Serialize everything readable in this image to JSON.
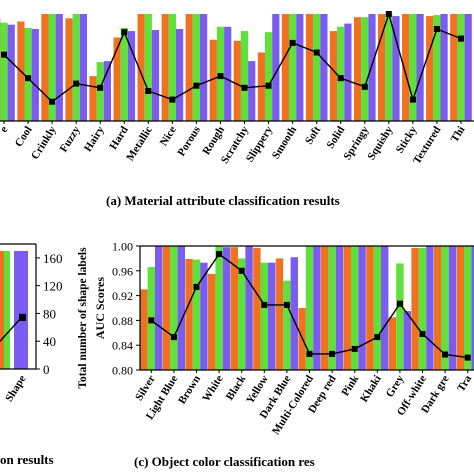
{
  "captions": {
    "a": "(a) Material attribute classification results",
    "b": "on results",
    "c": "(c) Object color classification res"
  },
  "colors": {
    "orange": "#f0711f",
    "green": "#5fe03a",
    "purple": "#7a5cf0",
    "line": "#000000"
  },
  "chart_data": [
    {
      "id": "material",
      "type": "bar",
      "categories": [
        "e",
        "Cool",
        "Crinkly",
        "Fuzzy",
        "Hairy",
        "Hard",
        "Metallic",
        "Nice",
        "Porous",
        "Rough",
        "Scratchy",
        "Slippery",
        "Smooth",
        "Soft",
        "Solid",
        "Springy",
        "Squishy",
        "Sticky",
        "Textured",
        "Thi"
      ],
      "ylim": [
        0,
        100
      ],
      "series": [
        {
          "values": [
            96,
            93,
            100,
            96,
            42,
            78,
            100,
            100,
            100,
            76,
            75,
            64,
            100,
            100,
            84,
            97,
            100,
            100,
            98,
            100
          ]
        },
        {
          "values": [
            92,
            87,
            100,
            100,
            55,
            87,
            100,
            100,
            100,
            88,
            84,
            83,
            100,
            100,
            88,
            97,
            100,
            100,
            99,
            100
          ]
        },
        {
          "values": [
            90,
            86,
            100,
            100,
            56,
            84,
            85,
            86,
            100,
            88,
            56,
            100,
            100,
            100,
            91,
            100,
            98,
            100,
            100,
            100
          ]
        }
      ],
      "line": [
        62,
        40,
        18,
        35,
        31,
        83,
        28,
        20,
        33,
        42,
        31,
        33,
        73,
        64,
        40,
        32,
        100,
        20,
        86,
        77
      ]
    },
    {
      "id": "shape",
      "type": "bar",
      "categories": [
        "Shape"
      ],
      "yticks_right": [
        "0",
        "40",
        "80",
        "120",
        "160"
      ],
      "ylabel_right": "Total number of shape labels",
      "ylim": [
        0,
        180
      ],
      "series": [
        {
          "values": [
            0
          ]
        },
        {
          "values": [
            0
          ]
        },
        {
          "values": [
            170
          ]
        }
      ],
      "line": [
        75
      ]
    },
    {
      "id": "color",
      "type": "bar",
      "categories": [
        "Silver",
        "Light Blue",
        "Brown",
        "White",
        "Black",
        "Yellow",
        "Dark Blue",
        "Multi-Colored",
        "Deep red",
        "Pink",
        "Khaki",
        "Grey",
        "Off-white",
        "Dark gre",
        "Tra"
      ],
      "ylabel": "AUC Scores",
      "yticks": [
        "0.80",
        "0.84",
        "0.88",
        "0.92",
        "0.96",
        "1.00"
      ],
      "ylim": [
        0.8,
        1.0
      ],
      "series": [
        {
          "values": [
            0.93,
            1.0,
            0.979,
            0.955,
            0.998,
            0.997,
            0.98,
            0.9,
            1.0,
            1.0,
            1.0,
            0.885,
            0.997,
            1.0,
            1.0
          ]
        },
        {
          "values": [
            0.966,
            1.0,
            0.978,
            1.0,
            0.98,
            0.973,
            0.944,
            1.0,
            1.0,
            1.0,
            1.0,
            0.972,
            0.997,
            1.0,
            1.0
          ]
        },
        {
          "values": [
            1.0,
            1.0,
            0.973,
            0.998,
            1.0,
            0.973,
            0.982,
            1.0,
            1.0,
            1.0,
            1.0,
            0.895,
            1.0,
            1.0,
            1.0
          ]
        }
      ],
      "line": [
        0.88,
        0.853,
        0.934,
        0.987,
        0.96,
        0.905,
        0.905,
        0.826,
        0.826,
        0.834,
        0.853,
        0.907,
        0.858,
        0.825,
        0.82
      ]
    }
  ]
}
